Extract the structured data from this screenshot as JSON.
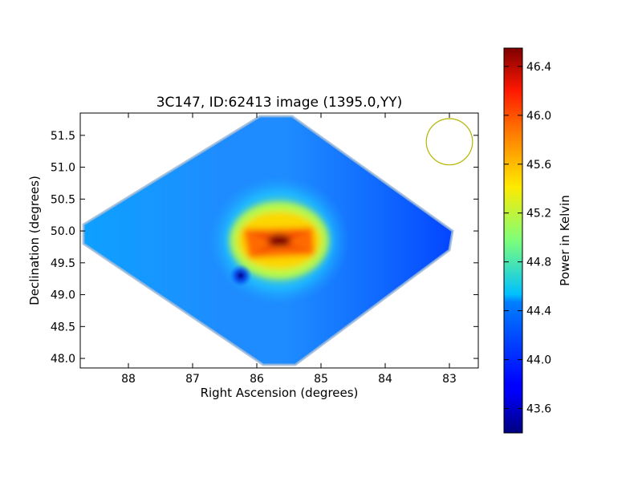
{
  "chart_data": {
    "type": "heatmap",
    "title": "3C147, ID:62413 image (1395.0,YY)",
    "xlabel": "Right Ascension (degrees)",
    "ylabel": "Declination (degrees)",
    "xlim": [
      88.75,
      82.55
    ],
    "ylim": [
      47.85,
      51.85
    ],
    "x_ticks": [
      88,
      87,
      86,
      85,
      84,
      83
    ],
    "x_tick_labels": [
      "88",
      "87",
      "86",
      "85",
      "84",
      "83"
    ],
    "y_ticks": [
      48.0,
      48.5,
      49.0,
      49.5,
      50.0,
      50.5,
      51.0,
      51.5
    ],
    "y_tick_labels": [
      "48.0",
      "48.5",
      "49.0",
      "49.5",
      "50.0",
      "50.5",
      "51.0",
      "51.5"
    ],
    "colorbar": {
      "label": "Power in Kelvin",
      "range": [
        43.4,
        46.55
      ],
      "ticks": [
        43.6,
        44.0,
        44.4,
        44.8,
        45.2,
        45.6,
        46.0,
        46.4
      ],
      "tick_labels": [
        "43.6",
        "44.0",
        "44.4",
        "44.8",
        "45.2",
        "45.6",
        "46.0",
        "46.4"
      ],
      "colormap": "jet"
    },
    "map": {
      "background_value": 44.2,
      "outline": [
        {
          "ra": 85.95,
          "dec": 51.8
        },
        {
          "ra": 85.45,
          "dec": 51.8
        },
        {
          "ra": 82.95,
          "dec": 50.0
        },
        {
          "ra": 83.0,
          "dec": 49.7
        },
        {
          "ra": 85.4,
          "dec": 47.9
        },
        {
          "ra": 85.9,
          "dec": 47.9
        },
        {
          "ra": 88.7,
          "dec": 49.8
        },
        {
          "ra": 88.7,
          "dec": 50.1
        }
      ],
      "peak": {
        "ra": 85.65,
        "dec": 49.85,
        "value": 46.55
      },
      "cold_spot": {
        "ra": 86.25,
        "dec": 49.3,
        "value": 43.6
      },
      "right_region_value": 43.95
    },
    "beam_circle": {
      "ra": 83.0,
      "dec": 51.4,
      "radius_deg": 0.36,
      "color": "#b5b500"
    }
  }
}
